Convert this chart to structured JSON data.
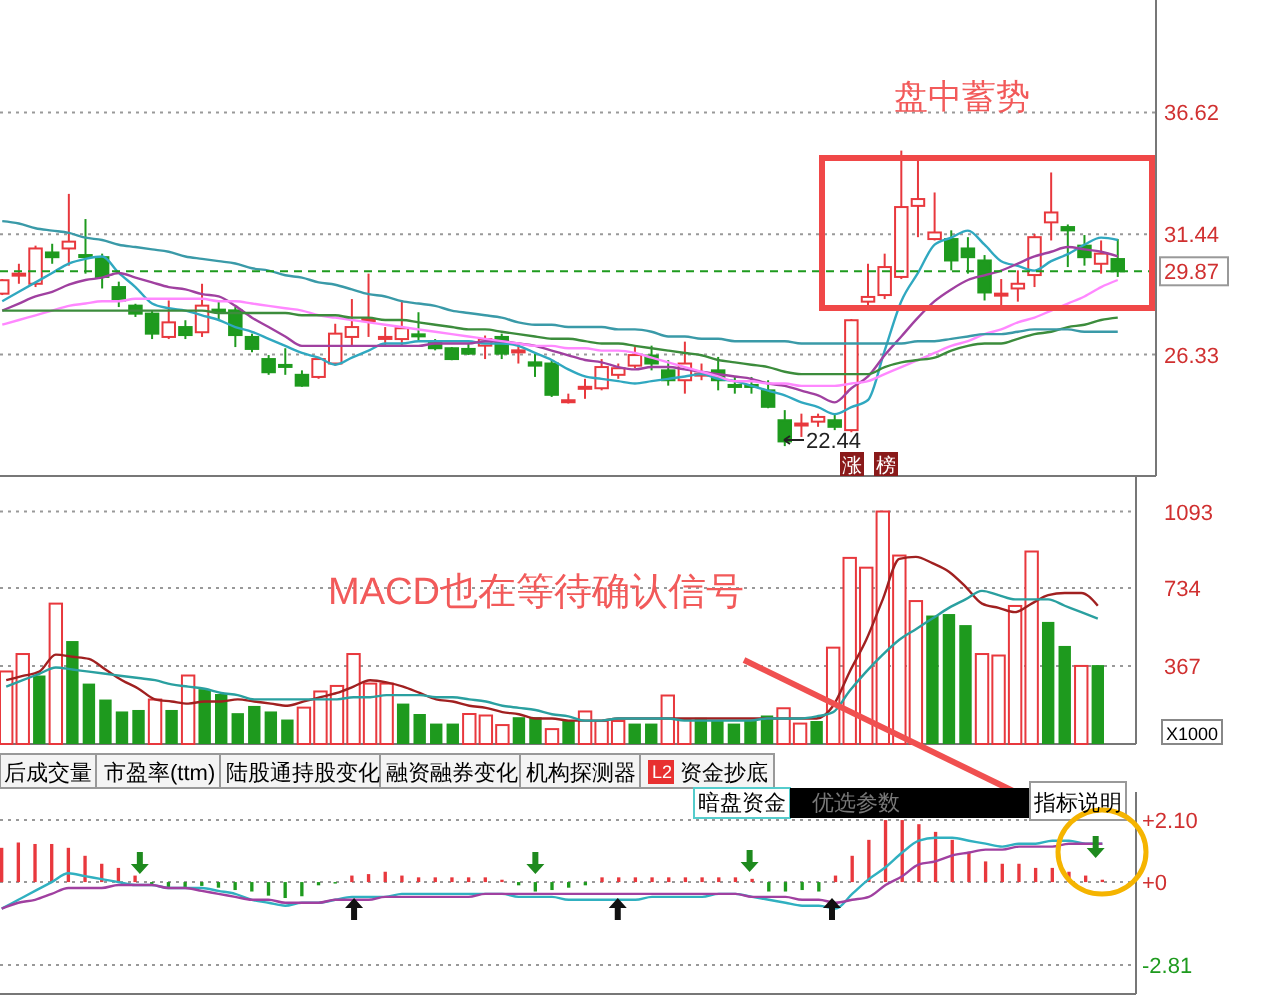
{
  "chart_data": [
    {
      "type": "candlestick",
      "categories": [
        null,
        null,
        null,
        null,
        null,
        null,
        null,
        null,
        null,
        null,
        null,
        null,
        null,
        null,
        null,
        null,
        null,
        null,
        null,
        null,
        null,
        null,
        null,
        null,
        null,
        null,
        null,
        null,
        null,
        null,
        null,
        null,
        null,
        null,
        null,
        null,
        null,
        null,
        null,
        null,
        null,
        null,
        null,
        null,
        null,
        null,
        null,
        null,
        null,
        null,
        null,
        null,
        null,
        null,
        null,
        null,
        null,
        null,
        null,
        null,
        null,
        null,
        null,
        null,
        null,
        null,
        null,
        null
      ],
      "ohlc": [
        [
          28.92,
          29.54,
          28.86,
          29.49
        ],
        [
          29.77,
          30.19,
          29.34,
          29.77
        ],
        [
          29.34,
          30.96,
          29.2,
          30.84
        ],
        [
          30.67,
          31.04,
          30.19,
          30.47
        ],
        [
          30.84,
          33.16,
          30.11,
          31.13
        ],
        [
          30.56,
          32.09,
          29.77,
          30.5
        ],
        [
          30.47,
          30.62,
          29.14,
          29.63
        ],
        [
          29.2,
          29.43,
          28.35,
          28.63
        ],
        [
          28.41,
          28.49,
          27.93,
          28.07
        ],
        [
          28.07,
          28.21,
          26.99,
          27.22
        ],
        [
          27.08,
          28.63,
          26.99,
          27.7
        ],
        [
          27.5,
          27.79,
          26.99,
          27.16
        ],
        [
          27.28,
          29.34,
          27.08,
          28.41
        ],
        [
          28.24,
          28.63,
          27.79,
          28.18
        ],
        [
          28.21,
          28.35,
          26.65,
          27.16
        ],
        [
          27.08,
          27.22,
          26.43,
          26.57
        ],
        [
          26.14,
          26.31,
          25.47,
          25.58
        ],
        [
          25.89,
          26.6,
          25.47,
          25.83
        ],
        [
          25.47,
          25.66,
          24.96,
          25.01
        ],
        [
          25.38,
          26.23,
          25.3,
          26.14
        ],
        [
          25.95,
          27.64,
          25.86,
          27.22
        ],
        [
          27.08,
          28.69,
          26.71,
          27.5
        ],
        [
          27.84,
          29.77,
          27.08,
          27.84
        ],
        [
          27.08,
          27.5,
          26.71,
          27.08
        ],
        [
          26.99,
          28.63,
          26.71,
          27.45
        ],
        [
          27.19,
          28.13,
          26.94,
          27.14
        ],
        [
          26.82,
          26.99,
          26.51,
          26.6
        ],
        [
          26.6,
          26.65,
          26.09,
          26.14
        ],
        [
          26.57,
          26.8,
          26.31,
          26.37
        ],
        [
          26.71,
          27.14,
          26.14,
          26.99
        ],
        [
          27.08,
          27.22,
          26.14,
          26.37
        ],
        [
          26.51,
          26.8,
          25.95,
          26.51
        ],
        [
          26.0,
          26.37,
          25.38,
          25.86
        ],
        [
          25.95,
          26.09,
          24.53,
          24.62
        ],
        [
          24.39,
          24.67,
          24.25,
          24.39
        ],
        [
          24.96,
          25.3,
          24.45,
          24.96
        ],
        [
          24.9,
          26.14,
          24.81,
          25.8
        ],
        [
          25.47,
          25.95,
          25.3,
          25.75
        ],
        [
          25.86,
          26.65,
          25.75,
          26.31
        ],
        [
          26.29,
          26.71,
          25.66,
          25.95
        ],
        [
          25.66,
          26.09,
          25.01,
          25.24
        ],
        [
          25.24,
          26.88,
          24.67,
          25.95
        ],
        [
          25.52,
          25.95,
          25.24,
          25.52
        ],
        [
          25.66,
          26.23,
          24.81,
          25.24
        ],
        [
          25.04,
          25.38,
          24.67,
          25.01
        ],
        [
          25.04,
          25.38,
          24.67,
          25.01
        ],
        [
          24.81,
          25.24,
          24.05,
          24.11
        ],
        [
          23.54,
          23.97,
          22.44,
          22.64
        ],
        [
          23.4,
          23.82,
          22.83,
          23.4
        ],
        [
          23.48,
          23.82,
          23.26,
          23.68
        ],
        [
          23.54,
          23.82,
          23.12,
          23.26
        ],
        [
          23.12,
          27.84,
          23.03,
          27.79
        ],
        [
          28.58,
          30.19,
          28.41,
          28.78
        ],
        [
          28.86,
          30.62,
          28.69,
          30.05
        ],
        [
          29.63,
          35.0,
          29.54,
          32.6
        ],
        [
          32.65,
          34.58,
          31.32,
          32.94
        ],
        [
          31.24,
          33.22,
          31.18,
          31.52
        ],
        [
          31.24,
          31.61,
          29.91,
          30.33
        ],
        [
          30.84,
          31.32,
          29.77,
          30.47
        ],
        [
          30.33,
          30.56,
          28.63,
          28.97
        ],
        [
          28.92,
          29.54,
          28.41,
          28.92
        ],
        [
          29.14,
          29.91,
          28.58,
          29.34
        ],
        [
          29.71,
          31.46,
          29.2,
          31.32
        ],
        [
          31.95,
          34.07,
          31.18,
          32.37
        ],
        [
          31.75,
          31.86,
          30.05,
          31.61
        ],
        [
          30.96,
          31.41,
          30.11,
          30.47
        ],
        [
          30.19,
          31.18,
          29.77,
          30.62
        ],
        [
          30.39,
          31.24,
          29.63,
          29.87
        ]
      ],
      "colors": [
        "#e8383d",
        "#e8383d",
        "#e8383d",
        "#1e9a1e",
        "#e8383d",
        "#1e9a1e",
        "#1e9a1e",
        "#1e9a1e",
        "#1e9a1e",
        "#1e9a1e",
        "#e8383d",
        "#1e9a1e",
        "#e8383d",
        "#1e9a1e",
        "#1e9a1e",
        "#1e9a1e",
        "#1e9a1e",
        "#1e9a1e",
        "#1e9a1e",
        "#e8383d",
        "#e8383d",
        "#e8383d",
        "#e8383d",
        "#e8383d",
        "#e8383d",
        "#1e9a1e",
        "#1e9a1e",
        "#1e9a1e",
        "#1e9a1e",
        "#e8383d",
        "#1e9a1e",
        "#e8383d",
        "#1e9a1e",
        "#1e9a1e",
        "#e8383d",
        "#e8383d",
        "#e8383d",
        "#e8383d",
        "#e8383d",
        "#1e9a1e",
        "#1e9a1e",
        "#e8383d",
        "#e8383d",
        "#1e9a1e",
        "#1e9a1e",
        "#1e9a1e",
        "#1e9a1e",
        "#1e9a1e",
        "#e8383d",
        "#e8383d",
        "#1e9a1e",
        "#e8383d",
        "#e8383d",
        "#e8383d",
        "#e8383d",
        "#e8383d",
        "#e8383d",
        "#1e9a1e",
        "#1e9a1e",
        "#1e9a1e",
        "#e8383d",
        "#e8383d",
        "#e8383d",
        "#e8383d",
        "#1e9a1e",
        "#1e9a1e",
        "#e8383d",
        "#1e9a1e"
      ],
      "series": [
        {
          "type": "line",
          "color": "#30a8c0",
          "values": [
            28.6,
            29.0,
            29.4,
            29.8,
            30.2,
            30.4,
            30.5,
            29.8,
            29.2,
            28.5,
            28.3,
            28.2,
            28.0,
            27.8,
            27.5,
            27.3,
            27.0,
            26.7,
            26.4,
            26.2,
            25.9,
            26.2,
            26.5,
            26.8,
            26.8,
            26.9,
            26.9,
            26.9,
            26.9,
            26.8,
            26.8,
            26.7,
            26.4,
            26.1,
            25.7,
            25.4,
            25.3,
            25.2,
            25.1,
            25.2,
            25.3,
            25.4,
            25.5,
            25.3,
            25.2,
            25.0,
            24.8,
            24.6,
            24.3,
            24.1,
            23.8,
            24.1,
            24.4,
            26.5,
            28.6,
            29.8,
            31.0,
            31.3,
            31.6,
            31.0,
            30.3,
            30.1,
            29.9,
            30.3,
            30.6,
            31.0,
            31.3,
            31.2
          ]
        },
        {
          "type": "line",
          "color": "#a040a0",
          "values": [
            28.2,
            28.5,
            28.8,
            29.0,
            29.3,
            29.5,
            29.6,
            29.8,
            29.6,
            29.4,
            29.2,
            29.1,
            28.9,
            28.8,
            28.4,
            27.9,
            27.5,
            27.1,
            26.7,
            26.7,
            26.7,
            26.7,
            26.7,
            26.7,
            26.7,
            26.7,
            26.8,
            26.8,
            26.8,
            26.9,
            26.9,
            26.8,
            26.7,
            26.5,
            26.3,
            26.1,
            26.0,
            25.8,
            25.7,
            25.8,
            25.8,
            25.7,
            25.6,
            25.5,
            25.4,
            25.3,
            25.1,
            25.0,
            24.8,
            24.6,
            24.3,
            24.9,
            25.4,
            26.3,
            27.1,
            27.9,
            28.6,
            29.1,
            29.5,
            29.7,
            29.9,
            30.2,
            30.5,
            30.7,
            30.9,
            30.8,
            30.7,
            30.5
          ]
        },
        {
          "type": "line",
          "color": "#ff88ff",
          "values": [
            27.6,
            27.8,
            28.0,
            28.2,
            28.4,
            28.5,
            28.6,
            28.6,
            28.7,
            28.7,
            28.7,
            28.7,
            28.7,
            28.6,
            28.6,
            28.5,
            28.4,
            28.3,
            28.2,
            28.0,
            27.9,
            27.8,
            27.7,
            27.6,
            27.5,
            27.4,
            27.3,
            27.2,
            27.1,
            27.0,
            26.9,
            26.8,
            26.7,
            26.7,
            26.6,
            26.6,
            26.5,
            26.5,
            26.4,
            26.2,
            26.0,
            25.8,
            25.6,
            25.4,
            25.2,
            25.2,
            25.1,
            25.1,
            25.0,
            25.0,
            25.0,
            25.1,
            25.2,
            25.5,
            25.8,
            26.1,
            26.4,
            26.7,
            26.9,
            27.2,
            27.4,
            27.7,
            27.9,
            28.2,
            28.5,
            28.8,
            29.2,
            29.5
          ]
        },
        {
          "type": "line",
          "color": "#3c8c3c",
          "values": [
            28.2,
            28.2,
            28.2,
            28.2,
            28.2,
            28.2,
            28.2,
            28.2,
            28.2,
            28.2,
            28.2,
            28.2,
            28.2,
            28.1,
            28.1,
            28.1,
            28.1,
            28.1,
            28.0,
            28.0,
            28.0,
            27.9,
            27.9,
            27.8,
            27.8,
            27.7,
            27.6,
            27.5,
            27.4,
            27.4,
            27.3,
            27.2,
            27.1,
            27.0,
            27.0,
            26.9,
            26.8,
            26.8,
            26.7,
            26.6,
            26.5,
            26.4,
            26.3,
            26.1,
            26.0,
            25.9,
            25.8,
            25.6,
            25.5,
            25.5,
            25.5,
            25.5,
            25.5,
            25.8,
            26.0,
            26.1,
            26.2,
            26.5,
            26.7,
            26.8,
            26.8,
            27.0,
            27.2,
            27.3,
            27.5,
            27.6,
            27.8,
            27.9
          ]
        },
        {
          "type": "line",
          "color": "#3a9aa8",
          "values": [
            32.0,
            31.9,
            31.7,
            31.6,
            31.5,
            31.3,
            31.2,
            31.0,
            30.9,
            30.8,
            30.7,
            30.5,
            30.4,
            30.3,
            30.2,
            30.0,
            29.9,
            29.7,
            29.6,
            29.4,
            29.3,
            29.1,
            28.9,
            28.8,
            28.6,
            28.5,
            28.4,
            28.2,
            28.1,
            28.0,
            27.9,
            27.7,
            27.6,
            27.6,
            27.5,
            27.5,
            27.5,
            27.4,
            27.4,
            27.3,
            27.1,
            27.1,
            27.0,
            27.0,
            26.9,
            26.9,
            26.9,
            26.9,
            26.8,
            26.8,
            26.8,
            26.8,
            26.8,
            26.8,
            26.8,
            26.9,
            26.9,
            27.0,
            27.1,
            27.2,
            27.2,
            27.3,
            27.4,
            27.4,
            27.4,
            27.3,
            27.3,
            27.3
          ]
        }
      ],
      "ylim": [
        21.17,
        41.4
      ],
      "yticks": [
        36.62,
        31.44,
        26.33
      ],
      "grid": "y",
      "tick_labels": "y",
      "ref_lines": [
        {
          "axis": "y",
          "value": 29.87,
          "label": "29.87",
          "color": "#1e9a1e",
          "line_style": "dashed"
        }
      ],
      "annotations": [
        "盘中蓄势",
        "22.44",
        "涨",
        "榜"
      ]
    },
    {
      "type": "bar",
      "categories": [
        null,
        null,
        null,
        null,
        null,
        null,
        null,
        null,
        null,
        null,
        null,
        null,
        null,
        null,
        null,
        null,
        null,
        null,
        null,
        null,
        null,
        null,
        null,
        null,
        null,
        null,
        null,
        null,
        null,
        null,
        null,
        null,
        null,
        null,
        null,
        null,
        null,
        null,
        null,
        null,
        null,
        null,
        null,
        null,
        null,
        null,
        null,
        null,
        null,
        null,
        null,
        null,
        null,
        null,
        null,
        null,
        null,
        null,
        null,
        null,
        null,
        null,
        null,
        null,
        null,
        null,
        null
      ],
      "series": [
        {
          "type": "bar",
          "values": [
            341,
            423,
            322,
            660,
            484,
            284,
            209,
            153,
            160,
            209,
            160,
            322,
            258,
            235,
            145,
            179,
            153,
            115,
            171,
            247,
            273,
            423,
            284,
            284,
            190,
            141,
            96,
            96,
            141,
            134,
            89,
            126,
            126,
            70,
            108,
            153,
            108,
            108,
            96,
            96,
            228,
            115,
            123,
            108,
            96,
            108,
            134,
            168,
            96,
            108,
            453,
            875,
            829,
            1093,
            886,
            672,
            604,
            611,
            559,
            423,
            416,
            649,
            905,
            574,
            461,
            367,
            371
          ],
          "colors": [
            "#e8383d",
            "#e8383d",
            "#1e9a1e",
            "#e8383d",
            "#1e9a1e",
            "#1e9a1e",
            "#1e9a1e",
            "#1e9a1e",
            "#1e9a1e",
            "#e8383d",
            "#1e9a1e",
            "#e8383d",
            "#1e9a1e",
            "#1e9a1e",
            "#1e9a1e",
            "#1e9a1e",
            "#1e9a1e",
            "#1e9a1e",
            "#e8383d",
            "#e8383d",
            "#e8383d",
            "#e8383d",
            "#e8383d",
            "#e8383d",
            "#1e9a1e",
            "#1e9a1e",
            "#1e9a1e",
            "#1e9a1e",
            "#e8383d",
            "#e8383d",
            "#e8383d",
            "#1e9a1e",
            "#1e9a1e",
            "#e8383d",
            "#1e9a1e",
            "#e8383d",
            "#e8383d",
            "#e8383d",
            "#1e9a1e",
            "#1e9a1e",
            "#e8383d",
            "#e8383d",
            "#1e9a1e",
            "#1e9a1e",
            "#1e9a1e",
            "#1e9a1e",
            "#1e9a1e",
            "#e8383d",
            "#e8383d",
            "#1e9a1e",
            "#e8383d",
            "#e8383d",
            "#e8383d",
            "#e8383d",
            "#e8383d",
            "#e8383d",
            "#1e9a1e",
            "#1e9a1e",
            "#1e9a1e",
            "#e8383d",
            "#e8383d",
            "#e8383d",
            "#e8383d",
            "#1e9a1e",
            "#1e9a1e",
            "#e8383d",
            "#1e9a1e"
          ]
        },
        {
          "type": "line",
          "color": "#a02020",
          "values": [
            300,
            320,
            340,
            420,
            410,
            400,
            350,
            300,
            260,
            210,
            200,
            190,
            200,
            200,
            210,
            200,
            190,
            180,
            200,
            220,
            240,
            270,
            300,
            290,
            270,
            240,
            210,
            200,
            180,
            170,
            150,
            140,
            120,
            120,
            110,
            110,
            110,
            120,
            120,
            120,
            120,
            120,
            120,
            120,
            120,
            120,
            120,
            120,
            120,
            120,
            180,
            340,
            490,
            680,
            870,
            880,
            850,
            810,
            740,
            660,
            640,
            620,
            660,
            700,
            710,
            710,
            650
          ]
        },
        {
          "type": "line",
          "color": "#2aa0a0",
          "values": [
            270,
            300,
            330,
            360,
            350,
            340,
            330,
            320,
            310,
            300,
            280,
            270,
            260,
            240,
            230,
            210,
            210,
            210,
            210,
            210,
            210,
            220,
            220,
            230,
            230,
            230,
            220,
            220,
            210,
            200,
            180,
            170,
            160,
            140,
            130,
            110,
            110,
            120,
            120,
            120,
            120,
            110,
            110,
            110,
            110,
            110,
            120,
            120,
            120,
            130,
            150,
            250,
            340,
            420,
            490,
            540,
            590,
            640,
            680,
            720,
            700,
            680,
            680,
            680,
            650,
            620,
            590
          ]
        }
      ],
      "ylim": [
        0,
        1260
      ],
      "yticks": [
        367,
        734,
        1093
      ],
      "ylabel": "X1000",
      "grid": "y",
      "tick_labels": "y",
      "annotations": [
        "MACD也在等待确认信号"
      ]
    },
    {
      "type": "bar",
      "categories": [
        null,
        null,
        null,
        null,
        null,
        null,
        null,
        null,
        null,
        null,
        null,
        null,
        null,
        null,
        null,
        null,
        null,
        null,
        null,
        null,
        null,
        null,
        null,
        null,
        null,
        null,
        null,
        null,
        null,
        null,
        null,
        null,
        null,
        null,
        null,
        null,
        null,
        null,
        null,
        null,
        null,
        null,
        null,
        null,
        null,
        null,
        null,
        null,
        null,
        null,
        null,
        null,
        null,
        null,
        null,
        null,
        null,
        null,
        null,
        null,
        null,
        null,
        null,
        null,
        null,
        null,
        null
      ],
      "series": [
        {
          "type": "bar",
          "values": [
            1.16,
            1.34,
            1.29,
            1.29,
            1.16,
            0.89,
            0.62,
            0.48,
            0.22,
            -0.11,
            -0.19,
            -0.19,
            -0.13,
            -0.19,
            -0.27,
            -0.32,
            -0.46,
            -0.54,
            -0.48,
            -0.11,
            -0.05,
            0.22,
            0.27,
            0.35,
            0.22,
            0.16,
            0.16,
            0.16,
            0.16,
            0.16,
            0.08,
            -0.11,
            -0.32,
            -0.27,
            -0.19,
            -0.11,
            0.16,
            0.16,
            0.16,
            0.16,
            0.16,
            0.16,
            0.16,
            0.16,
            0.16,
            0.11,
            -0.32,
            -0.32,
            -0.27,
            -0.32,
            0.22,
            0.89,
            1.43,
            2.1,
            2.1,
            1.96,
            1.7,
            1.43,
            1.02,
            0.7,
            0.62,
            0.62,
            0.48,
            0.48,
            0.35,
            0.22,
            0.08
          ],
          "colors": [
            "#e8383d",
            "#e8383d",
            "#e8383d",
            "#e8383d",
            "#e8383d",
            "#e8383d",
            "#e8383d",
            "#e8383d",
            "#e8383d",
            "#1e9a1e",
            "#1e9a1e",
            "#1e9a1e",
            "#1e9a1e",
            "#1e9a1e",
            "#1e9a1e",
            "#1e9a1e",
            "#1e9a1e",
            "#1e9a1e",
            "#1e9a1e",
            "#1e9a1e",
            "#1e9a1e",
            "#e8383d",
            "#e8383d",
            "#e8383d",
            "#e8383d",
            "#e8383d",
            "#e8383d",
            "#e8383d",
            "#e8383d",
            "#e8383d",
            "#e8383d",
            "#1e9a1e",
            "#1e9a1e",
            "#1e9a1e",
            "#1e9a1e",
            "#1e9a1e",
            "#e8383d",
            "#e8383d",
            "#e8383d",
            "#e8383d",
            "#e8383d",
            "#e8383d",
            "#e8383d",
            "#e8383d",
            "#e8383d",
            "#e8383d",
            "#1e9a1e",
            "#1e9a1e",
            "#1e9a1e",
            "#1e9a1e",
            "#e8383d",
            "#e8383d",
            "#e8383d",
            "#e8383d",
            "#e8383d",
            "#e8383d",
            "#e8383d",
            "#e8383d",
            "#e8383d",
            "#e8383d",
            "#e8383d",
            "#e8383d",
            "#e8383d",
            "#e8383d",
            "#e8383d",
            "#e8383d",
            "#e8383d"
          ]
        },
        {
          "type": "line",
          "color": "#30b0c0",
          "values": [
            -0.9,
            -0.6,
            -0.3,
            0.0,
            0.3,
            0.2,
            0.1,
            0.0,
            -0.1,
            -0.1,
            -0.2,
            -0.2,
            -0.2,
            -0.3,
            -0.4,
            -0.6,
            -0.7,
            -0.8,
            -0.7,
            -0.7,
            -0.6,
            -0.5,
            -0.5,
            -0.5,
            -0.4,
            -0.4,
            -0.4,
            -0.4,
            -0.4,
            -0.4,
            -0.4,
            -0.5,
            -0.5,
            -0.5,
            -0.6,
            -0.6,
            -0.6,
            -0.6,
            -0.6,
            -0.5,
            -0.5,
            -0.5,
            -0.5,
            -0.4,
            -0.4,
            -0.5,
            -0.6,
            -0.7,
            -0.8,
            -0.8,
            -0.9,
            -0.4,
            0.1,
            0.5,
            1.0,
            1.4,
            1.5,
            1.5,
            1.4,
            1.3,
            1.2,
            1.3,
            1.3,
            1.4,
            1.4,
            1.3,
            1.3
          ]
        },
        {
          "type": "line",
          "color": "#a040a0",
          "values": [
            -0.9,
            -0.7,
            -0.6,
            -0.4,
            -0.2,
            -0.2,
            -0.2,
            -0.1,
            -0.1,
            -0.1,
            -0.2,
            -0.2,
            -0.3,
            -0.4,
            -0.5,
            -0.6,
            -0.6,
            -0.7,
            -0.7,
            -0.7,
            -0.6,
            -0.6,
            -0.6,
            -0.5,
            -0.5,
            -0.5,
            -0.5,
            -0.5,
            -0.5,
            -0.4,
            -0.4,
            -0.4,
            -0.4,
            -0.4,
            -0.4,
            -0.4,
            -0.4,
            -0.4,
            -0.4,
            -0.4,
            -0.4,
            -0.4,
            -0.4,
            -0.4,
            -0.4,
            -0.5,
            -0.5,
            -0.5,
            -0.6,
            -0.6,
            -0.7,
            -0.6,
            -0.5,
            -0.1,
            0.2,
            0.6,
            0.7,
            0.9,
            1.0,
            1.1,
            1.1,
            1.2,
            1.2,
            1.2,
            1.3,
            1.3,
            1.3
          ]
        }
      ],
      "ylim": [
        -3.79,
        3.05
      ],
      "yticks": [
        {
          "value": 2.1,
          "label": "+2.10"
        },
        {
          "value": 0,
          "label": "+0"
        },
        -2.81
      ],
      "grid": "y",
      "tick_labels": "y",
      "annotations": [
        "后成交量",
        "市盈率(ttm)",
        "陆股通持股变化",
        "融资融券变化",
        "机构探测器",
        "L2",
        "资金抄底",
        "暗盘资金",
        "优选参数",
        "指标说明"
      ]
    }
  ]
}
